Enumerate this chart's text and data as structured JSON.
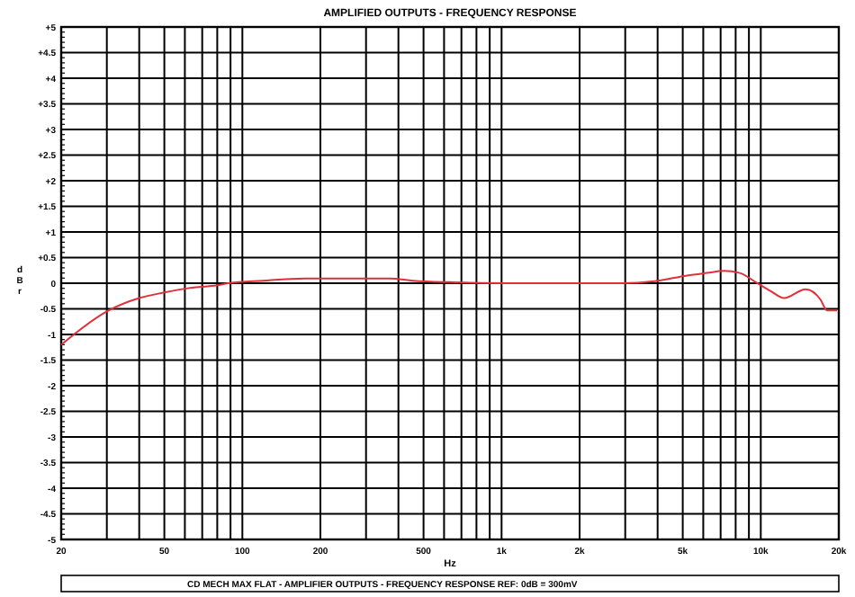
{
  "chart_data": {
    "type": "line",
    "title": "AMPLIFIED OUTPUTS - FREQUENCY RESPONSE",
    "xlabel": "Hz",
    "ylabel": "dBr",
    "annotations": [
      "CD MECH MAX FLAT  -  AMPLIFIER OUTPUTS  -  FREQUENCY RESPONSE  REF: 0dB = 300mV"
    ],
    "log": "x",
    "grid": true,
    "marker": "none",
    "line_style": "solid",
    "xlim": [
      20,
      20000
    ],
    "xticks": [
      20,
      {
        "value": 30,
        "label": null
      },
      {
        "value": 40,
        "label": null
      },
      50,
      {
        "value": 60,
        "label": null
      },
      {
        "value": 70,
        "label": null
      },
      {
        "value": 80,
        "label": null
      },
      {
        "value": 90,
        "label": null
      },
      100,
      200,
      {
        "value": 300,
        "label": null
      },
      {
        "value": 400,
        "label": null
      },
      500,
      {
        "value": 600,
        "label": null
      },
      {
        "value": 700,
        "label": null
      },
      {
        "value": 800,
        "label": null
      },
      {
        "value": 900,
        "label": null
      },
      {
        "value": 1000,
        "label": "1k"
      },
      {
        "value": 2000,
        "label": "2k"
      },
      {
        "value": 3000,
        "label": null
      },
      {
        "value": 4000,
        "label": null
      },
      {
        "value": 5000,
        "label": "5k"
      },
      {
        "value": 6000,
        "label": null
      },
      {
        "value": 7000,
        "label": null
      },
      {
        "value": 8000,
        "label": null
      },
      {
        "value": 9000,
        "label": null
      },
      {
        "value": 10000,
        "label": "10k"
      },
      {
        "value": 20000,
        "label": "20k"
      }
    ],
    "ylim": [
      -5,
      5
    ],
    "yticks": [
      -5,
      -4.5,
      -4,
      -3.5,
      -3,
      -2.5,
      -2,
      -1.5,
      -1,
      -0.5,
      0,
      {
        "value": 0.5,
        "label": "+0.5"
      },
      {
        "value": 1,
        "label": "+1"
      },
      {
        "value": 1.5,
        "label": "+1.5"
      },
      {
        "value": 2,
        "label": "+2"
      },
      {
        "value": 2.5,
        "label": "+2.5"
      },
      {
        "value": 3,
        "label": "+3"
      },
      {
        "value": 3.5,
        "label": "+3.5"
      },
      {
        "value": 4,
        "label": "+4"
      },
      {
        "value": 4.5,
        "label": "+4.5"
      },
      {
        "value": 5,
        "label": "+5"
      }
    ],
    "series": [
      {
        "color": "#e0303a",
        "x": [
          20,
          30,
          40,
          50,
          63,
          80,
          88,
          120,
          174,
          370,
          455,
          630,
          1040,
          2900,
          3900,
          5200,
          6200,
          7200,
          8300,
          9500,
          10900,
          12300,
          14900,
          17000,
          18000,
          19700
        ],
        "values": [
          -1.2,
          -0.55,
          -0.29,
          -0.18,
          -0.09,
          -0.04,
          0,
          0.05,
          0.09,
          0.09,
          0.05,
          0.02,
          0,
          0,
          0.04,
          0.15,
          0.2,
          0.24,
          0.2,
          0.03,
          -0.15,
          -0.29,
          -0.12,
          -0.32,
          -0.53,
          -0.53
        ]
      }
    ]
  }
}
